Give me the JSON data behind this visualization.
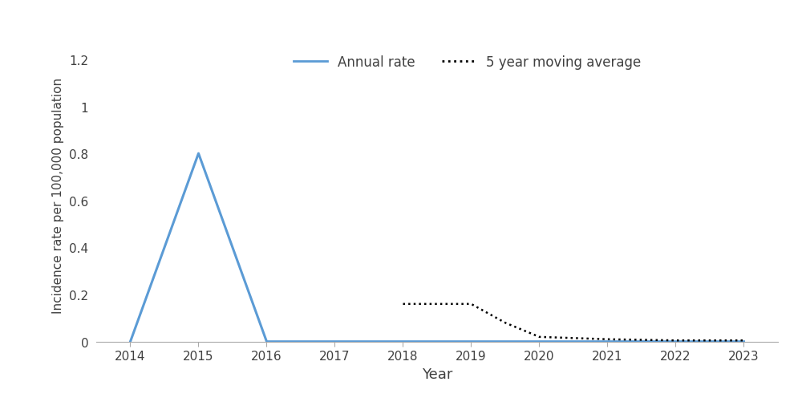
{
  "years": [
    2014,
    2015,
    2016,
    2017,
    2018,
    2019,
    2020,
    2021,
    2022,
    2023
  ],
  "annual_rate": [
    0.0,
    0.8,
    0.0,
    0.0,
    0.0,
    0.0,
    0.0,
    0.0,
    0.0,
    0.0
  ],
  "moving_avg_years": [
    2018,
    2018.5,
    2019,
    2019.5,
    2020,
    2021,
    2022,
    2023
  ],
  "moving_avg": [
    0.16,
    0.16,
    0.16,
    0.08,
    0.02,
    0.01,
    0.005,
    0.005
  ],
  "annual_color": "#5B9BD5",
  "moving_avg_color": "#000000",
  "xlabel": "Year",
  "ylabel": "Incidence rate per 100,000 population",
  "ylim": [
    0,
    1.25
  ],
  "yticks": [
    0,
    0.2,
    0.4,
    0.6,
    0.8,
    1.0,
    1.2
  ],
  "xlim": [
    2013.5,
    2023.5
  ],
  "legend_annual": "Annual rate",
  "legend_moving": "5 year moving average",
  "background_color": "#ffffff",
  "xlabel_fontsize": 13,
  "ylabel_fontsize": 11,
  "tick_fontsize": 11,
  "legend_fontsize": 12
}
